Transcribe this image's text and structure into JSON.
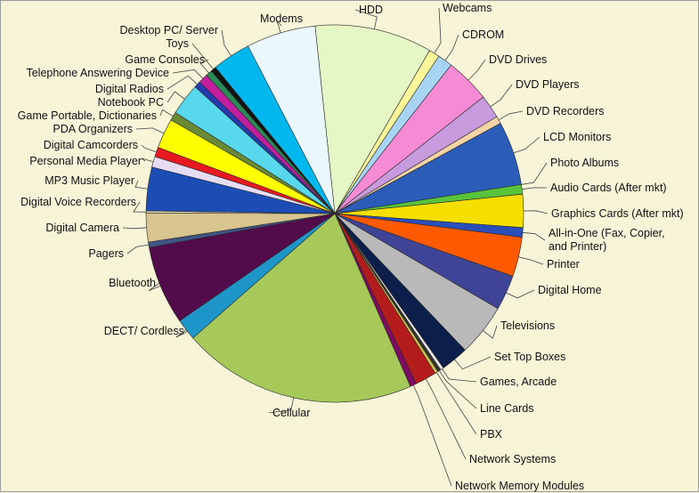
{
  "chart_data": {
    "type": "pie",
    "title": "",
    "slices": [
      {
        "label": "HDD",
        "value": 11.0,
        "color": "#e6f7c6"
      },
      {
        "label": "Webcams",
        "value": 1.0,
        "color": "#fbf69a"
      },
      {
        "label": "CDROM",
        "value": 1.4,
        "color": "#a8d4f4"
      },
      {
        "label": "DVD Drives",
        "value": 4.2,
        "color": "#f58bd4"
      },
      {
        "label": "DVD Players",
        "value": 2.2,
        "color": "#c79bde"
      },
      {
        "label": "DVD Recorders",
        "value": 0.7,
        "color": "#f4d3a6"
      },
      {
        "label": "LCD Monitors",
        "value": 6.0,
        "color": "#2b5db8"
      },
      {
        "label": "Photo Albums",
        "value": 0.0,
        "color": "#1c1c1c"
      },
      {
        "label": "Audio Cards (After mkt)",
        "value": 0.9,
        "color": "#57c43a"
      },
      {
        "label": "Graphics Cards (After mkt)",
        "value": 3.1,
        "color": "#f5df00"
      },
      {
        "label": "All-in-One (Fax, Copier, and Printer)",
        "value": 0.9,
        "color": "#2a4fb8"
      },
      {
        "label": "Printer",
        "value": 3.7,
        "color": "#ff5a00"
      },
      {
        "label": "Digital Home",
        "value": 3.3,
        "color": "#3f4496"
      },
      {
        "label": "Televisions",
        "value": 4.9,
        "color": "#b9b9b9"
      },
      {
        "label": "Set Top Boxes",
        "value": 2.6,
        "color": "#0c1f4a"
      },
      {
        "label": "Games, Arcade",
        "value": 0.3,
        "color": "#e8e8e8"
      },
      {
        "label": "Line Cards",
        "value": 0.3,
        "color": "#333333"
      },
      {
        "label": "PBX",
        "value": 0.3,
        "color": "#c9c04a"
      },
      {
        "label": "Network Systems",
        "value": 2.0,
        "color": "#b41c1c"
      },
      {
        "label": "Network Memory Modules",
        "value": 0.6,
        "color": "#7d0b63"
      },
      {
        "label": "Cellular",
        "value": 22.0,
        "color": "#a6c95a"
      },
      {
        "label": "DECT/ Cordless",
        "value": 2.0,
        "color": "#1e95c8"
      },
      {
        "label": "Bluetooth",
        "value": 7.4,
        "color": "#520b4b"
      },
      {
        "label": "Pagers",
        "value": 0.5,
        "color": "#3f5585"
      },
      {
        "label": "Digital Camera",
        "value": 2.7,
        "color": "#d8c58f"
      },
      {
        "label": "Digital Voice Recorders",
        "value": 0.2,
        "color": "#e6dcb8"
      },
      {
        "label": "MP3 Music Player",
        "value": 4.1,
        "color": "#1b4db5"
      },
      {
        "label": "Personal Media Player",
        "value": 1.0,
        "color": "#e7ddf3"
      },
      {
        "label": "Digital Camcorders",
        "value": 0.9,
        "color": "#e81820"
      },
      {
        "label": "PDA Organizers",
        "value": 2.8,
        "color": "#ffff00"
      },
      {
        "label": "Game Portable, Dictionaries",
        "value": 0.8,
        "color": "#6a8a36"
      },
      {
        "label": "Notebook PC",
        "value": 3.0,
        "color": "#58d8ec"
      },
      {
        "label": "Digital Radios",
        "value": 0.6,
        "color": "#2639b0"
      },
      {
        "label": "Telephone Answering Device",
        "value": 0.9,
        "color": "#c21e9e"
      },
      {
        "label": "Game Consoles",
        "value": 0.6,
        "color": "#2a8a56"
      },
      {
        "label": "Toys",
        "value": 0.5,
        "color": "#131313"
      },
      {
        "label": "Desktop PC/ Server",
        "value": 3.6,
        "color": "#00b8ee"
      },
      {
        "label": "Modems",
        "value": 6.5,
        "color": "#eaf8fd"
      }
    ]
  }
}
